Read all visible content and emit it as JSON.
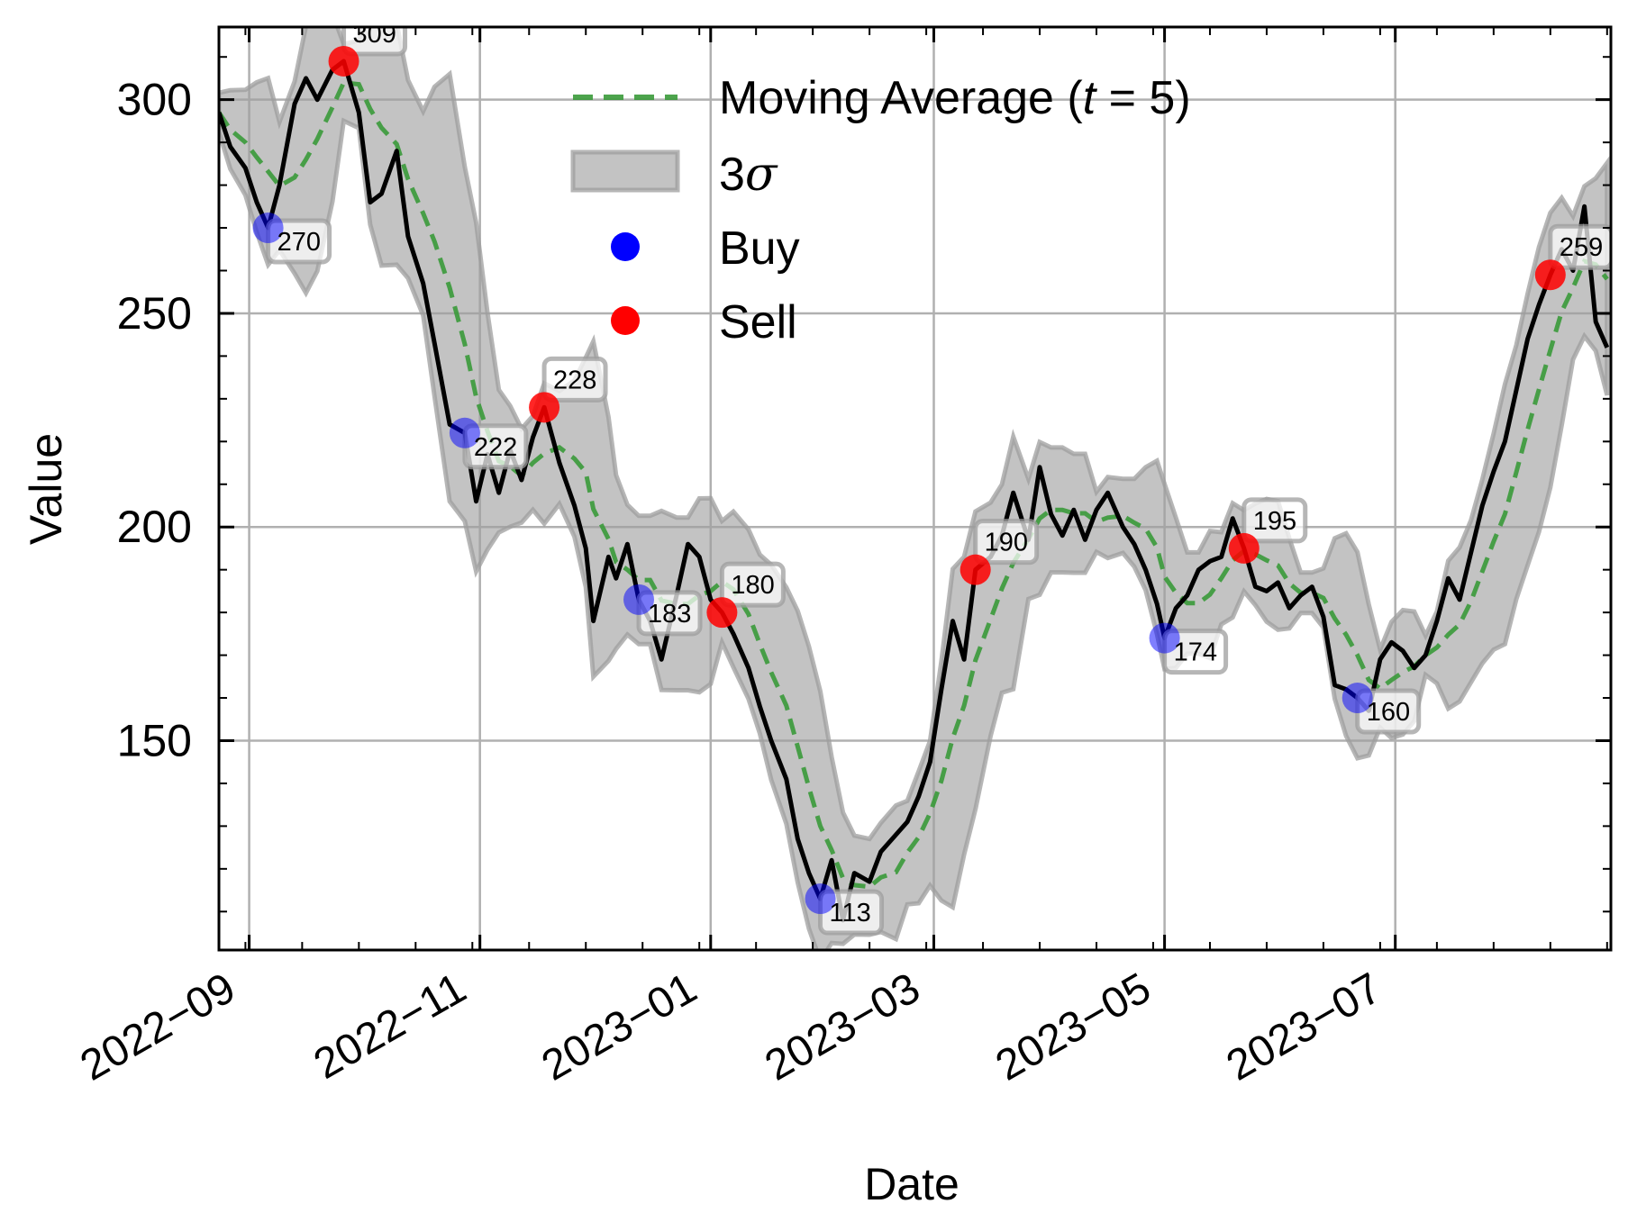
{
  "chart_data": {
    "type": "line",
    "title": "",
    "xlabel": "Date",
    "ylabel": "Value",
    "x_range": [
      "2022-08-24",
      "2023-08-27"
    ],
    "ylim": [
      101,
      317
    ],
    "grid": true,
    "legend_position": "top-center",
    "x_ticks": [
      {
        "date": "2022-09-01",
        "label": "2022−09"
      },
      {
        "date": "2022-11-01",
        "label": "2022−11"
      },
      {
        "date": "2023-01-01",
        "label": "2023−01"
      },
      {
        "date": "2023-03-01",
        "label": "2023−03"
      },
      {
        "date": "2023-05-01",
        "label": "2023−05"
      },
      {
        "date": "2023-07-01",
        "label": "2023−07"
      }
    ],
    "y_ticks": [
      150,
      200,
      250,
      300
    ],
    "legend": [
      {
        "kind": "dashed-line",
        "label": "Moving Average (",
        "italic": "t",
        "suffix": " = 5)",
        "color": "#3a9a3a"
      },
      {
        "kind": "band",
        "label": "3",
        "greek": "σ",
        "color": "#9e9e9e"
      },
      {
        "kind": "marker",
        "label": "Buy",
        "color": "#0000ff"
      },
      {
        "kind": "marker",
        "label": "Sell",
        "color": "#ff0000"
      }
    ],
    "series": [
      {
        "name": "Value",
        "color": "#000000",
        "points": [
          [
            "2022-08-24",
            297
          ],
          [
            "2022-08-27",
            289
          ],
          [
            "2022-08-31",
            284
          ],
          [
            "2022-09-03",
            276
          ],
          [
            "2022-09-06",
            270
          ],
          [
            "2022-09-09",
            280
          ],
          [
            "2022-09-13",
            299
          ],
          [
            "2022-09-16",
            305
          ],
          [
            "2022-09-19",
            300
          ],
          [
            "2022-09-23",
            307
          ],
          [
            "2022-09-26",
            309
          ],
          [
            "2022-09-30",
            297
          ],
          [
            "2022-10-03",
            276
          ],
          [
            "2022-10-06",
            278
          ],
          [
            "2022-10-10",
            288
          ],
          [
            "2022-10-13",
            268
          ],
          [
            "2022-10-17",
            257
          ],
          [
            "2022-10-20",
            243
          ],
          [
            "2022-10-24",
            224
          ],
          [
            "2022-10-28",
            222
          ],
          [
            "2022-10-31",
            206
          ],
          [
            "2022-11-03",
            217
          ],
          [
            "2022-11-06",
            208
          ],
          [
            "2022-11-09",
            218
          ],
          [
            "2022-11-12",
            211
          ],
          [
            "2022-11-15",
            221
          ],
          [
            "2022-11-18",
            228
          ],
          [
            "2022-11-22",
            215
          ],
          [
            "2022-11-26",
            205
          ],
          [
            "2022-11-29",
            195
          ],
          [
            "2022-12-01",
            178
          ],
          [
            "2022-12-05",
            193
          ],
          [
            "2022-12-07",
            188
          ],
          [
            "2022-12-10",
            196
          ],
          [
            "2022-12-13",
            183
          ],
          [
            "2022-12-16",
            178
          ],
          [
            "2022-12-19",
            169
          ],
          [
            "2022-12-23",
            184
          ],
          [
            "2022-12-26",
            196
          ],
          [
            "2022-12-29",
            193
          ],
          [
            "2023-01-01",
            183
          ],
          [
            "2023-01-04",
            180
          ],
          [
            "2023-01-07",
            175
          ],
          [
            "2023-01-11",
            167
          ],
          [
            "2023-01-14",
            158
          ],
          [
            "2023-01-17",
            150
          ],
          [
            "2023-01-21",
            141
          ],
          [
            "2023-01-24",
            127
          ],
          [
            "2023-01-27",
            119
          ],
          [
            "2023-01-30",
            113
          ],
          [
            "2023-02-02",
            122
          ],
          [
            "2023-02-05",
            108
          ],
          [
            "2023-02-08",
            119
          ],
          [
            "2023-02-12",
            117
          ],
          [
            "2023-02-15",
            124
          ],
          [
            "2023-02-19",
            128
          ],
          [
            "2023-02-22",
            131
          ],
          [
            "2023-02-25",
            137
          ],
          [
            "2023-02-28",
            145
          ],
          [
            "2023-03-03",
            162
          ],
          [
            "2023-03-06",
            178
          ],
          [
            "2023-03-09",
            169
          ],
          [
            "2023-03-12",
            190
          ],
          [
            "2023-03-16",
            193
          ],
          [
            "2023-03-19",
            198
          ],
          [
            "2023-03-22",
            208
          ],
          [
            "2023-03-26",
            197
          ],
          [
            "2023-03-29",
            214
          ],
          [
            "2023-04-01",
            203
          ],
          [
            "2023-04-04",
            198
          ],
          [
            "2023-04-07",
            204
          ],
          [
            "2023-04-10",
            197
          ],
          [
            "2023-04-13",
            204
          ],
          [
            "2023-04-16",
            208
          ],
          [
            "2023-04-20",
            200
          ],
          [
            "2023-04-23",
            196
          ],
          [
            "2023-04-26",
            190
          ],
          [
            "2023-04-29",
            182
          ],
          [
            "2023-05-01",
            174
          ],
          [
            "2023-05-04",
            181
          ],
          [
            "2023-05-07",
            184
          ],
          [
            "2023-05-10",
            190
          ],
          [
            "2023-05-13",
            192
          ],
          [
            "2023-05-16",
            193
          ],
          [
            "2023-05-19",
            202
          ],
          [
            "2023-05-22",
            195
          ],
          [
            "2023-05-25",
            186
          ],
          [
            "2023-05-28",
            185
          ],
          [
            "2023-05-31",
            187
          ],
          [
            "2023-06-03",
            181
          ],
          [
            "2023-06-06",
            184
          ],
          [
            "2023-06-09",
            186
          ],
          [
            "2023-06-12",
            179
          ],
          [
            "2023-06-15",
            163
          ],
          [
            "2023-06-18",
            162
          ],
          [
            "2023-06-21",
            160
          ],
          [
            "2023-06-24",
            157
          ],
          [
            "2023-06-27",
            169
          ],
          [
            "2023-06-30",
            173
          ],
          [
            "2023-07-03",
            171
          ],
          [
            "2023-07-06",
            167
          ],
          [
            "2023-07-09",
            170
          ],
          [
            "2023-07-12",
            178
          ],
          [
            "2023-07-15",
            188
          ],
          [
            "2023-07-18",
            183
          ],
          [
            "2023-07-21",
            194
          ],
          [
            "2023-07-24",
            205
          ],
          [
            "2023-07-27",
            213
          ],
          [
            "2023-07-30",
            220
          ],
          [
            "2023-08-02",
            232
          ],
          [
            "2023-08-05",
            244
          ],
          [
            "2023-08-08",
            252
          ],
          [
            "2023-08-11",
            259
          ],
          [
            "2023-08-14",
            265
          ],
          [
            "2023-08-17",
            260
          ],
          [
            "2023-08-20",
            275
          ],
          [
            "2023-08-23",
            248
          ],
          [
            "2023-08-26",
            242
          ]
        ]
      }
    ],
    "markers": [
      {
        "type": "Buy",
        "date": "2022-09-06",
        "value": 270,
        "label": "270"
      },
      {
        "type": "Sell",
        "date": "2022-09-26",
        "value": 309,
        "label": "309"
      },
      {
        "type": "Buy",
        "date": "2022-10-28",
        "value": 222,
        "label": "222"
      },
      {
        "type": "Sell",
        "date": "2022-11-18",
        "value": 228,
        "label": "228"
      },
      {
        "type": "Buy",
        "date": "2022-12-13",
        "value": 183,
        "label": "183"
      },
      {
        "type": "Sell",
        "date": "2023-01-04",
        "value": 180,
        "label": "180"
      },
      {
        "type": "Buy",
        "date": "2023-01-30",
        "value": 113,
        "label": "113"
      },
      {
        "type": "Sell",
        "date": "2023-03-12",
        "value": 190,
        "label": "190"
      },
      {
        "type": "Buy",
        "date": "2023-05-01",
        "value": 174,
        "label": "174"
      },
      {
        "type": "Sell",
        "date": "2023-05-22",
        "value": 195,
        "label": "195"
      },
      {
        "type": "Buy",
        "date": "2023-06-21",
        "value": 160,
        "label": "160"
      },
      {
        "type": "Sell",
        "date": "2023-08-11",
        "value": 259,
        "label": "259"
      }
    ]
  }
}
